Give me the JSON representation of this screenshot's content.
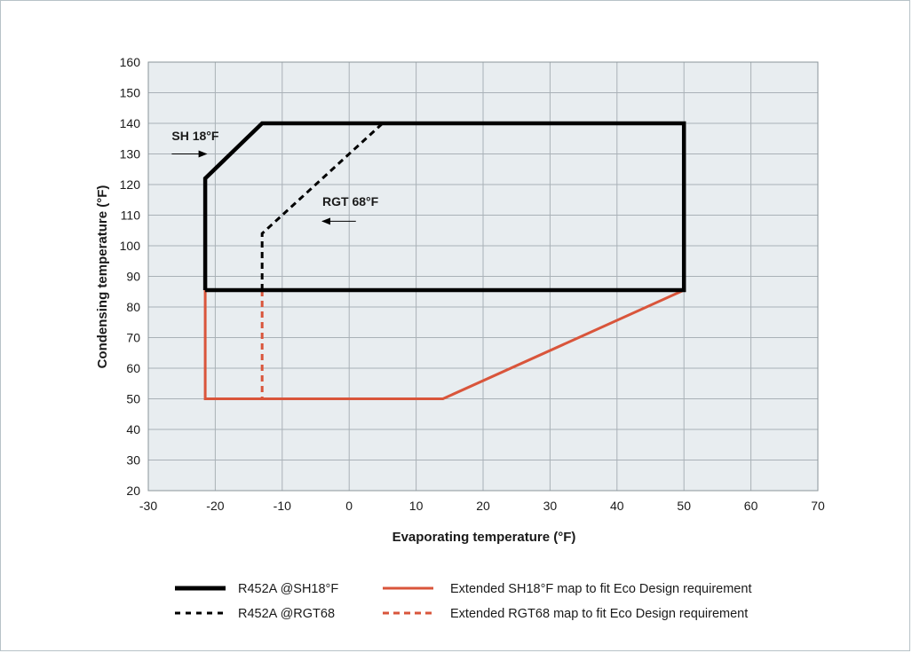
{
  "chart_data": {
    "type": "line",
    "xlabel": "Evaporating temperature (°F)",
    "ylabel": "Condensing temperature (°F)",
    "xlim": [
      -30,
      70
    ],
    "ylim": [
      20,
      160
    ],
    "x_ticks": [
      -30,
      -20,
      -10,
      0,
      10,
      20,
      30,
      40,
      50,
      60,
      70
    ],
    "y_ticks": [
      20,
      30,
      40,
      50,
      60,
      70,
      80,
      90,
      100,
      110,
      120,
      130,
      140,
      150,
      160
    ],
    "grid": true,
    "legend_position": "bottom",
    "series": [
      {
        "name": "R452A @SH18°F",
        "color": "#000000",
        "style": "solid-thick",
        "points": [
          [
            -21.5,
            85.5
          ],
          [
            -21.5,
            122
          ],
          [
            -13,
            140
          ],
          [
            50,
            140
          ],
          [
            50,
            85.5
          ],
          [
            -21.5,
            85.5
          ]
        ]
      },
      {
        "name": "R452A @RGT68",
        "color": "#000000",
        "style": "dashed",
        "points": [
          [
            -13,
            85.5
          ],
          [
            -13,
            104
          ],
          [
            5,
            140
          ]
        ]
      },
      {
        "name": "Extended SH18°F map to fit Eco Design requirement",
        "color": "#d9553b",
        "style": "solid",
        "points": [
          [
            -21.5,
            85.5
          ],
          [
            -21.5,
            50
          ],
          [
            14,
            50
          ],
          [
            50,
            85.5
          ],
          [
            -21.5,
            85.5
          ]
        ]
      },
      {
        "name": "Extended RGT68 map to fit Eco Design requirement",
        "color": "#d9553b",
        "style": "dashed",
        "points": [
          [
            -13,
            85.5
          ],
          [
            -13,
            50
          ]
        ]
      }
    ],
    "annotations": [
      {
        "text": "SH 18°F",
        "x": -26.5,
        "y": 134.5,
        "arrow_from": [
          -26.5,
          130
        ],
        "arrow_to": [
          -21.3,
          130
        ]
      },
      {
        "text": "RGT 68°F",
        "x": -4,
        "y": 113,
        "arrow_from": [
          1,
          108
        ],
        "arrow_to": [
          -4,
          108
        ]
      }
    ]
  },
  "legend": [
    {
      "label": "R452A @SH18°F"
    },
    {
      "label": "R452A @RGT68"
    },
    {
      "label": "Extended SH18°F map to fit Eco Design requirement"
    },
    {
      "label": "Extended RGT68 map to fit Eco Design requirement"
    }
  ]
}
